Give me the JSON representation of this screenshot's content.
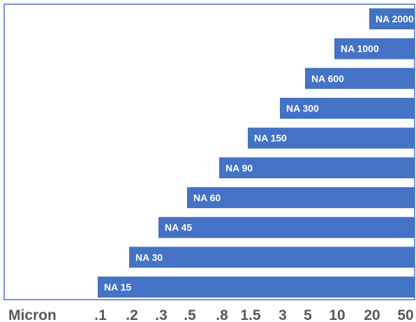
{
  "chart_data": {
    "type": "bar",
    "orientation": "horizontal",
    "xlabel": "Micron",
    "xtick_labels": [
      ".1",
      ".2",
      ".3",
      ".5",
      ".8",
      "1.5",
      "3",
      "5",
      "10",
      "20",
      "50"
    ],
    "xlim": [
      0.1,
      50
    ],
    "x_scale": "tick-label positions (non-linear)",
    "categories": [
      "NA 15",
      "NA 30",
      "NA 45",
      "NA 60",
      "NA 90",
      "NA 150",
      "NA 300",
      "NA 600",
      "NA 1000",
      "NA 2000"
    ],
    "bars": [
      {
        "label": "NA 15",
        "start": 0.1,
        "end": 50
      },
      {
        "label": "NA 30",
        "start": 0.2,
        "end": 50
      },
      {
        "label": "NA 45",
        "start": 0.3,
        "end": 50
      },
      {
        "label": "NA 60",
        "start": 0.5,
        "end": 50
      },
      {
        "label": "NA 90",
        "start": 0.8,
        "end": 50
      },
      {
        "label": "NA 150",
        "start": 1.5,
        "end": 50
      },
      {
        "label": "NA 300",
        "start": 3,
        "end": 50
      },
      {
        "label": "NA 600",
        "start": 5,
        "end": 50
      },
      {
        "label": "NA 1000",
        "start": 10,
        "end": 50
      },
      {
        "label": "NA 2000",
        "start": 20,
        "end": 50
      }
    ],
    "legend": "none",
    "grid": false,
    "colors": {
      "bar": "#4472C4",
      "bar_label": "#FFFFFF",
      "axis_text": "#595959",
      "frame": "#4472C4"
    }
  }
}
